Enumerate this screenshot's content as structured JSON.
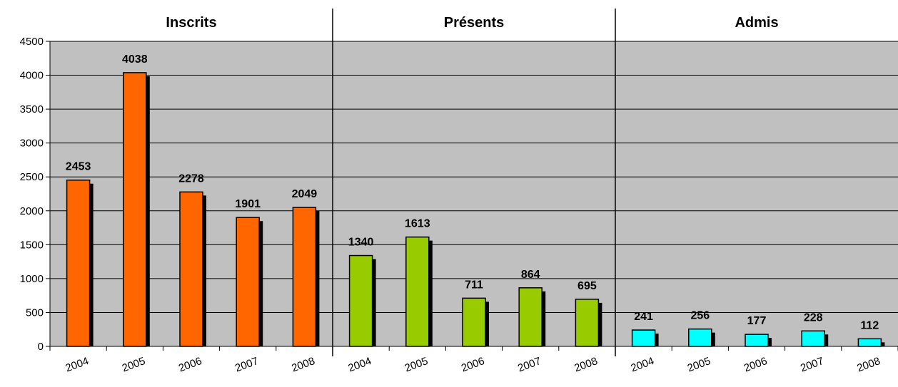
{
  "chart_data": {
    "type": "bar",
    "groups": [
      {
        "label": "Inscrits",
        "color": "#ff6600"
      },
      {
        "label": "Présents",
        "color": "#99cc00"
      },
      {
        "label": "Admis",
        "color": "#00ffff"
      }
    ],
    "categories": [
      "2004",
      "2005",
      "2006",
      "2007",
      "2008"
    ],
    "series": [
      {
        "values": [
          2453,
          4038,
          2278,
          1901,
          2049
        ]
      },
      {
        "values": [
          1340,
          1613,
          711,
          864,
          695
        ]
      },
      {
        "values": [
          241,
          256,
          177,
          228,
          112
        ]
      }
    ],
    "ylim": [
      0,
      4500
    ],
    "yticks": [
      0,
      500,
      1000,
      1500,
      2000,
      2500,
      3000,
      3500,
      4000,
      4500
    ],
    "grid": true,
    "plot_background": "#c0c0c0",
    "legend": "none"
  }
}
